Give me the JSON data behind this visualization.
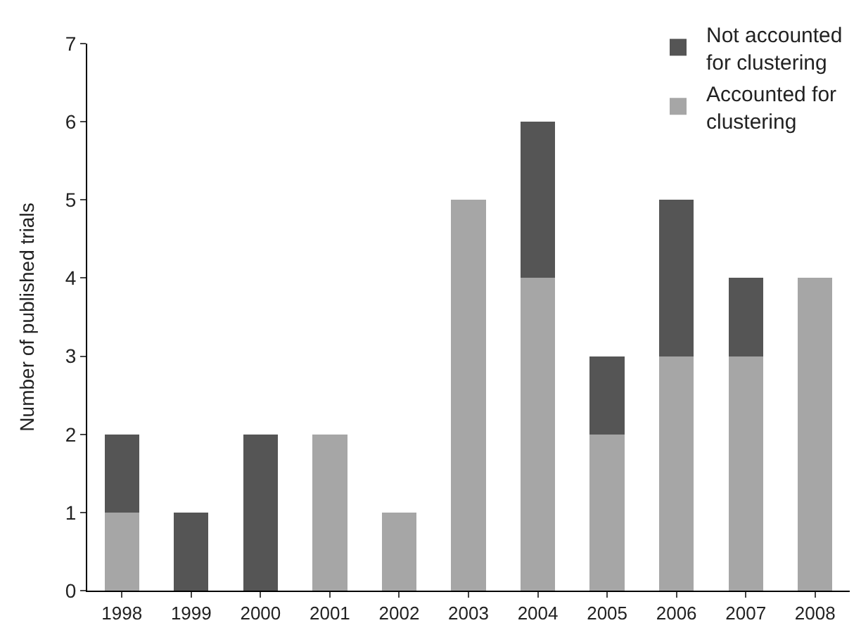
{
  "chart_data": {
    "type": "bar",
    "stacked": true,
    "ylabel": "Number of published trials",
    "categories": [
      "1998",
      "1999",
      "2000",
      "2001",
      "2002",
      "2003",
      "2004",
      "2005",
      "2006",
      "2007",
      "2008"
    ],
    "series": [
      {
        "name": "Accounted for clustering",
        "color": "#a6a6a6",
        "values": [
          1,
          0,
          0,
          2,
          1,
          5,
          4,
          2,
          3,
          3,
          4
        ]
      },
      {
        "name": "Not accounted for clustering",
        "color": "#555555",
        "values": [
          1,
          1,
          2,
          0,
          0,
          0,
          2,
          1,
          2,
          1,
          0
        ]
      }
    ],
    "ylim": [
      0,
      7
    ],
    "yticks": [
      0,
      1,
      2,
      3,
      4,
      5,
      6,
      7
    ],
    "grid": false,
    "legend": "top right"
  }
}
